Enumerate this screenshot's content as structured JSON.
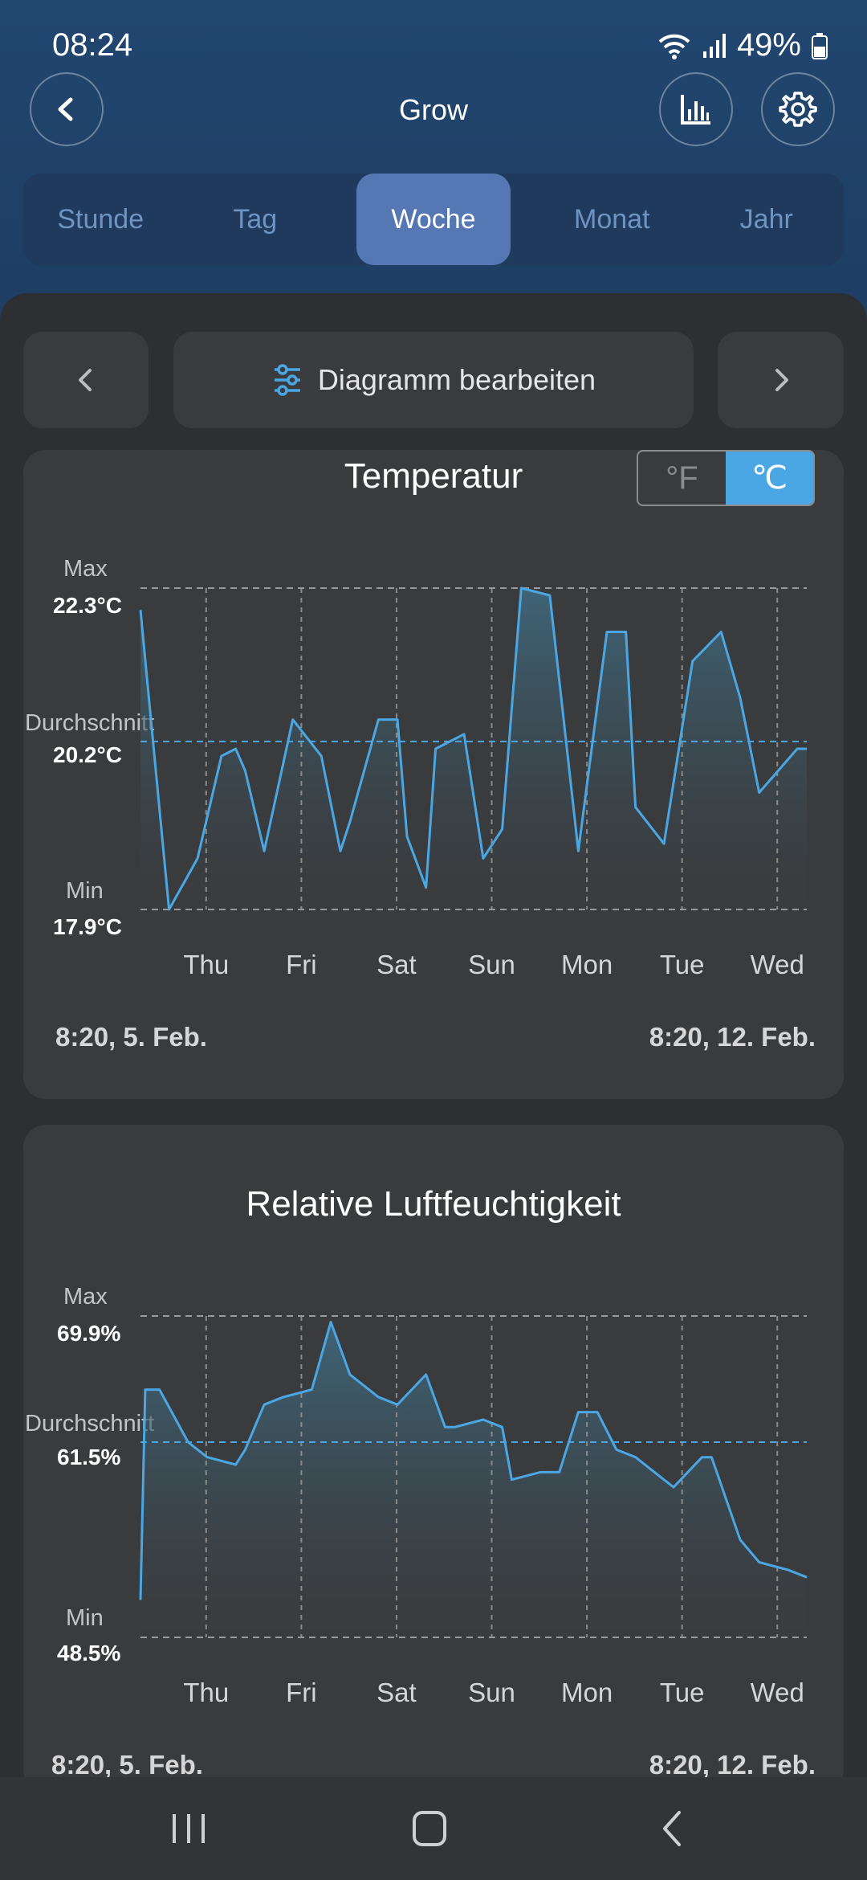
{
  "status_bar": {
    "time": "08:24",
    "battery": "49%"
  },
  "header": {
    "title": "Grow"
  },
  "tabs": [
    {
      "label": "Stunde",
      "active": false
    },
    {
      "label": "Tag",
      "active": false
    },
    {
      "label": "Woche",
      "active": true
    },
    {
      "label": "Monat",
      "active": false
    },
    {
      "label": "Jahr",
      "active": false
    }
  ],
  "toolbar": {
    "edit_label": "Diagramm bearbeiten"
  },
  "temperature": {
    "title": "Temperatur",
    "units": {
      "fahrenheit": "°F",
      "celsius": "℃",
      "selected": "celsius"
    },
    "max_label": "Max",
    "max_value": "22.3°C",
    "avg_label": "Durchschnitt",
    "avg_value": "20.2°C",
    "min_label": "Min",
    "min_value": "17.9°C",
    "days": [
      "Thu",
      "Fri",
      "Sat",
      "Sun",
      "Mon",
      "Tue",
      "Wed"
    ],
    "range_start": "8:20,  5. Feb.",
    "range_end": "8:20,  12. Feb."
  },
  "humidity": {
    "title": "Relative Luftfeuchtigkeit",
    "max_label": "Max",
    "max_value": "69.9%",
    "avg_label": "Durchschnitt",
    "avg_value": "61.5%",
    "min_label": "Min",
    "min_value": "48.5%",
    "days": [
      "Thu",
      "Fri",
      "Sat",
      "Sun",
      "Mon",
      "Tue",
      "Wed"
    ],
    "range_start": "8:20,  5. Feb.",
    "range_end": "8:20,  12. Feb."
  },
  "colors": {
    "line": "#4aa7e3",
    "accent_tab": "#5577b4",
    "card": "#3a3b3d"
  },
  "chart_data": [
    {
      "type": "area",
      "title": "Temperatur",
      "ylim": [
        17.9,
        22.3
      ],
      "reference_lines": {
        "max": 22.3,
        "average": 20.2,
        "min": 17.9
      },
      "x_days": [
        0,
        0.3,
        0.6,
        0.85,
        1.0,
        1.1,
        1.3,
        1.6,
        1.9,
        2.1,
        2.2,
        2.5,
        2.7,
        2.8,
        3.0,
        3.1,
        3.4,
        3.6,
        3.8,
        4.0,
        4.3,
        4.6,
        4.9,
        5.1,
        5.2,
        5.5,
        5.8,
        6.1,
        6.3,
        6.5,
        6.9,
        7.0
      ],
      "values": [
        22.0,
        17.9,
        18.6,
        20.0,
        20.1,
        19.8,
        18.7,
        20.5,
        20.0,
        18.7,
        19.1,
        20.5,
        20.5,
        18.9,
        18.2,
        20.1,
        20.3,
        18.6,
        19.0,
        22.3,
        22.2,
        18.7,
        21.7,
        21.7,
        19.3,
        18.8,
        21.3,
        21.7,
        20.8,
        19.5,
        20.1,
        20.1
      ],
      "x_tick_labels": [
        "Thu",
        "Fri",
        "Sat",
        "Sun",
        "Mon",
        "Tue",
        "Wed"
      ],
      "x_range": [
        "8:20,  5. Feb.",
        "8:20,  12. Feb."
      ]
    },
    {
      "type": "area",
      "title": "Relative Luftfeuchtigkeit",
      "ylim": [
        48.5,
        69.9
      ],
      "reference_lines": {
        "max": 69.9,
        "average": 61.5,
        "min": 48.5
      },
      "x_days": [
        0,
        0.05,
        0.2,
        0.5,
        0.7,
        1.0,
        1.1,
        1.3,
        1.5,
        1.8,
        2.0,
        2.2,
        2.5,
        2.7,
        3.0,
        3.2,
        3.3,
        3.6,
        3.8,
        3.9,
        4.2,
        4.4,
        4.6,
        4.8,
        5.0,
        5.2,
        5.4,
        5.6,
        5.9,
        6.0,
        6.3,
        6.5,
        6.8,
        7.0
      ],
      "values": [
        51,
        65,
        65,
        61.5,
        60.5,
        60,
        61,
        64,
        64.5,
        65,
        69.5,
        66,
        64.5,
        64,
        66,
        62.5,
        62.5,
        63,
        62.5,
        59,
        59.5,
        59.5,
        63.5,
        63.5,
        61,
        60.5,
        59.5,
        58.5,
        60.5,
        60.5,
        55,
        53.5,
        53,
        52.5
      ],
      "x_tick_labels": [
        "Thu",
        "Fri",
        "Sat",
        "Sun",
        "Mon",
        "Tue",
        "Wed"
      ],
      "x_range": [
        "8:20,  5. Feb.",
        "8:20,  12. Feb."
      ]
    }
  ]
}
